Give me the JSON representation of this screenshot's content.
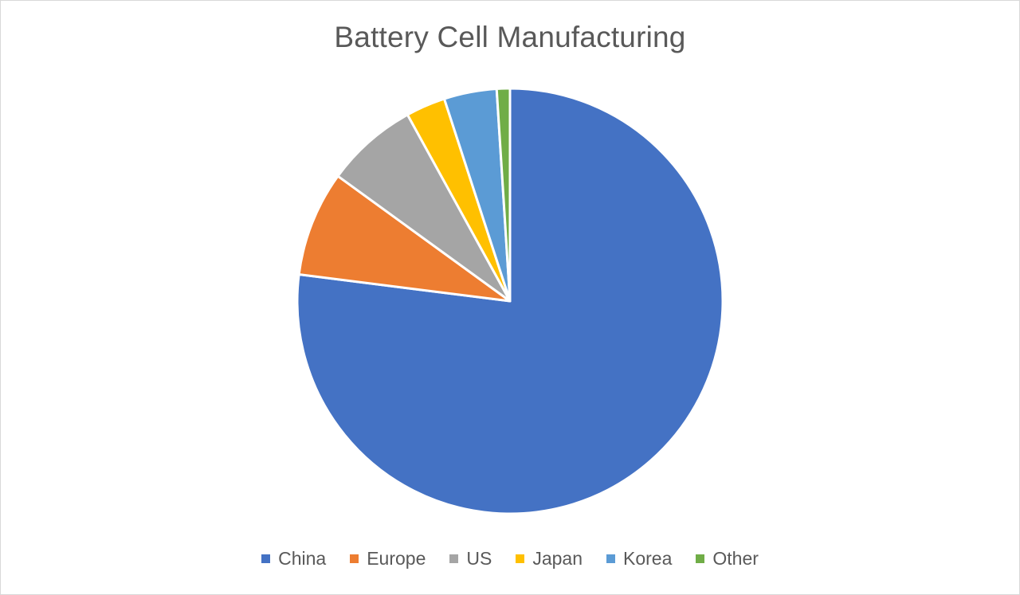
{
  "chart_data": {
    "type": "pie",
    "title": "Battery Cell Manufacturing",
    "categories": [
      "China",
      "Europe",
      "US",
      "Japan",
      "Korea",
      "Other"
    ],
    "values": [
      77,
      8,
      7,
      3,
      4,
      1
    ],
    "colors": [
      "#4472c4",
      "#ed7d31",
      "#a5a5a5",
      "#ffc000",
      "#5b9bd5",
      "#70ad47"
    ],
    "start_angle_deg": 0,
    "direction": "clockwise",
    "legend_position": "bottom"
  }
}
